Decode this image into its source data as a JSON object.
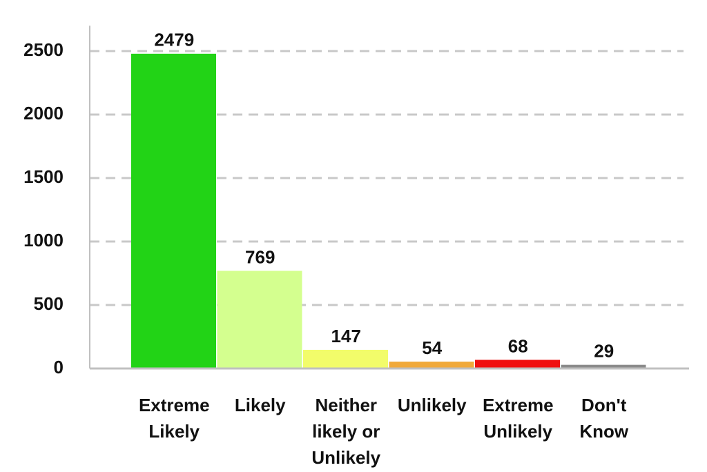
{
  "chart_data": {
    "type": "bar",
    "categories": [
      "Extreme\nLikely",
      "Likely",
      "Neither\nlikely or\nUnlikely",
      "Unlikely",
      "Extreme\nUnlikely",
      "Don't\nKnow"
    ],
    "values": [
      2479,
      769,
      147,
      54,
      68,
      29
    ],
    "colors": [
      "#22d316",
      "#d4ff8f",
      "#f2fc6a",
      "#f0a93a",
      "#f01010",
      "#8a8a8a"
    ],
    "ylim": [
      0,
      2700
    ],
    "yticks": [
      0,
      500,
      1000,
      1500,
      2000,
      2500
    ],
    "grid": true
  }
}
